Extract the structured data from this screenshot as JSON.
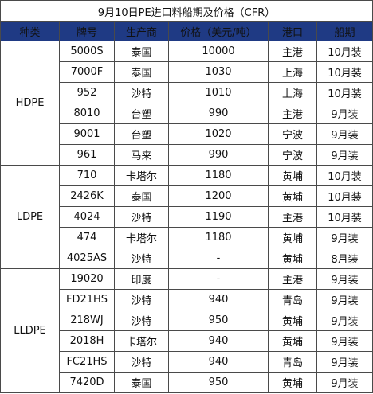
{
  "title": "9月10日PE进口料船期及价格（CFR）",
  "columns": [
    "种类",
    "牌号",
    "生产商",
    "价格（美元/吨）",
    "港口",
    "船期"
  ],
  "groups": [
    {
      "category": "HDPE",
      "rows": [
        {
          "grade": "5000S",
          "producer": "泰国",
          "price": "10000",
          "port": "主港",
          "shipment": "10月装"
        },
        {
          "grade": "7000F",
          "producer": "泰国",
          "price": "1030",
          "port": "上海",
          "shipment": "10月装"
        },
        {
          "grade": "952",
          "producer": "沙特",
          "price": "1010",
          "port": "上海",
          "shipment": "10月装"
        },
        {
          "grade": "8010",
          "producer": "台塑",
          "price": "990",
          "port": "主港",
          "shipment": "9月装"
        },
        {
          "grade": "9001",
          "producer": "台塑",
          "price": "1020",
          "port": "宁波",
          "shipment": "9月装"
        },
        {
          "grade": "961",
          "producer": "马来",
          "price": "990",
          "port": "宁波",
          "shipment": "9月装"
        }
      ]
    },
    {
      "category": "LDPE",
      "rows": [
        {
          "grade": "710",
          "producer": "卡塔尔",
          "price": "1180",
          "port": "黄埔",
          "shipment": "10月装"
        },
        {
          "grade": "2426K",
          "producer": "泰国",
          "price": "1200",
          "port": "黄埔",
          "shipment": "10月装"
        },
        {
          "grade": "4024",
          "producer": "沙特",
          "price": "1190",
          "port": "主港",
          "shipment": "10月装"
        },
        {
          "grade": "474",
          "producer": "卡塔尔",
          "price": "1180",
          "port": "黄埔",
          "shipment": "9月装"
        },
        {
          "grade": "4025AS",
          "producer": "沙特",
          "price": "-",
          "port": "黄埔",
          "shipment": "8月装"
        }
      ]
    },
    {
      "category": "LLDPE",
      "rows": [
        {
          "grade": "19020",
          "producer": "印度",
          "price": "-",
          "port": "主港",
          "shipment": "9月装"
        },
        {
          "grade": "FD21HS",
          "producer": "沙特",
          "price": "940",
          "port": "青岛",
          "shipment": "9月装"
        },
        {
          "grade": "218WJ",
          "producer": "沙特",
          "price": "950",
          "port": "黄埔",
          "shipment": "9月装"
        },
        {
          "grade": "2018H",
          "producer": "卡塔尔",
          "price": "940",
          "port": "黄埔",
          "shipment": "9月装"
        },
        {
          "grade": "FC21HS",
          "producer": "沙特",
          "price": "940",
          "port": "青岛",
          "shipment": "9月装"
        },
        {
          "grade": "7420D",
          "producer": "泰国",
          "price": "950",
          "port": "黄埔",
          "shipment": "9月装"
        }
      ]
    }
  ],
  "colors": {
    "header_bg": "#1f3a84",
    "header_text": "#ffffff",
    "border": "#4a4a4a"
  }
}
